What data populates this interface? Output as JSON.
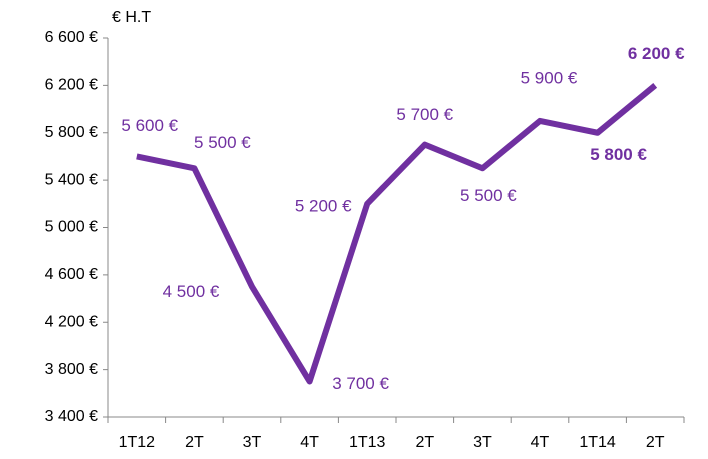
{
  "chart_data": {
    "type": "line",
    "y_axis_label": "€ H.T",
    "categories": [
      "1T12",
      "2T",
      "3T",
      "4T",
      "1T13",
      "2T",
      "3T",
      "4T",
      "1T14",
      "2T"
    ],
    "values": [
      5600,
      5500,
      4500,
      3700,
      5200,
      5700,
      5500,
      5900,
      5800,
      6200
    ],
    "value_labels": [
      "5 600 €",
      "5 500 €",
      "4 500 €",
      "3 700 €",
      "5 200 €",
      "5 700 €",
      "5 500 €",
      "5 900 €",
      "5 800 €",
      "6 200 €"
    ],
    "color": "#7030a0",
    "ylim": [
      3400,
      6600
    ],
    "yticks": [
      {
        "value": 3400,
        "label": "3 400 €"
      },
      {
        "value": 3800,
        "label": "3 800 €"
      },
      {
        "value": 4200,
        "label": "4 200 €"
      },
      {
        "value": 4600,
        "label": "4 600 €"
      },
      {
        "value": 5000,
        "label": "5 000 €"
      },
      {
        "value": 5400,
        "label": "5 400 €"
      },
      {
        "value": 5800,
        "label": "5 800 €"
      },
      {
        "value": 6200,
        "label": "6 200 €"
      },
      {
        "value": 6600,
        "label": "6 600 €"
      }
    ],
    "grid": false
  }
}
